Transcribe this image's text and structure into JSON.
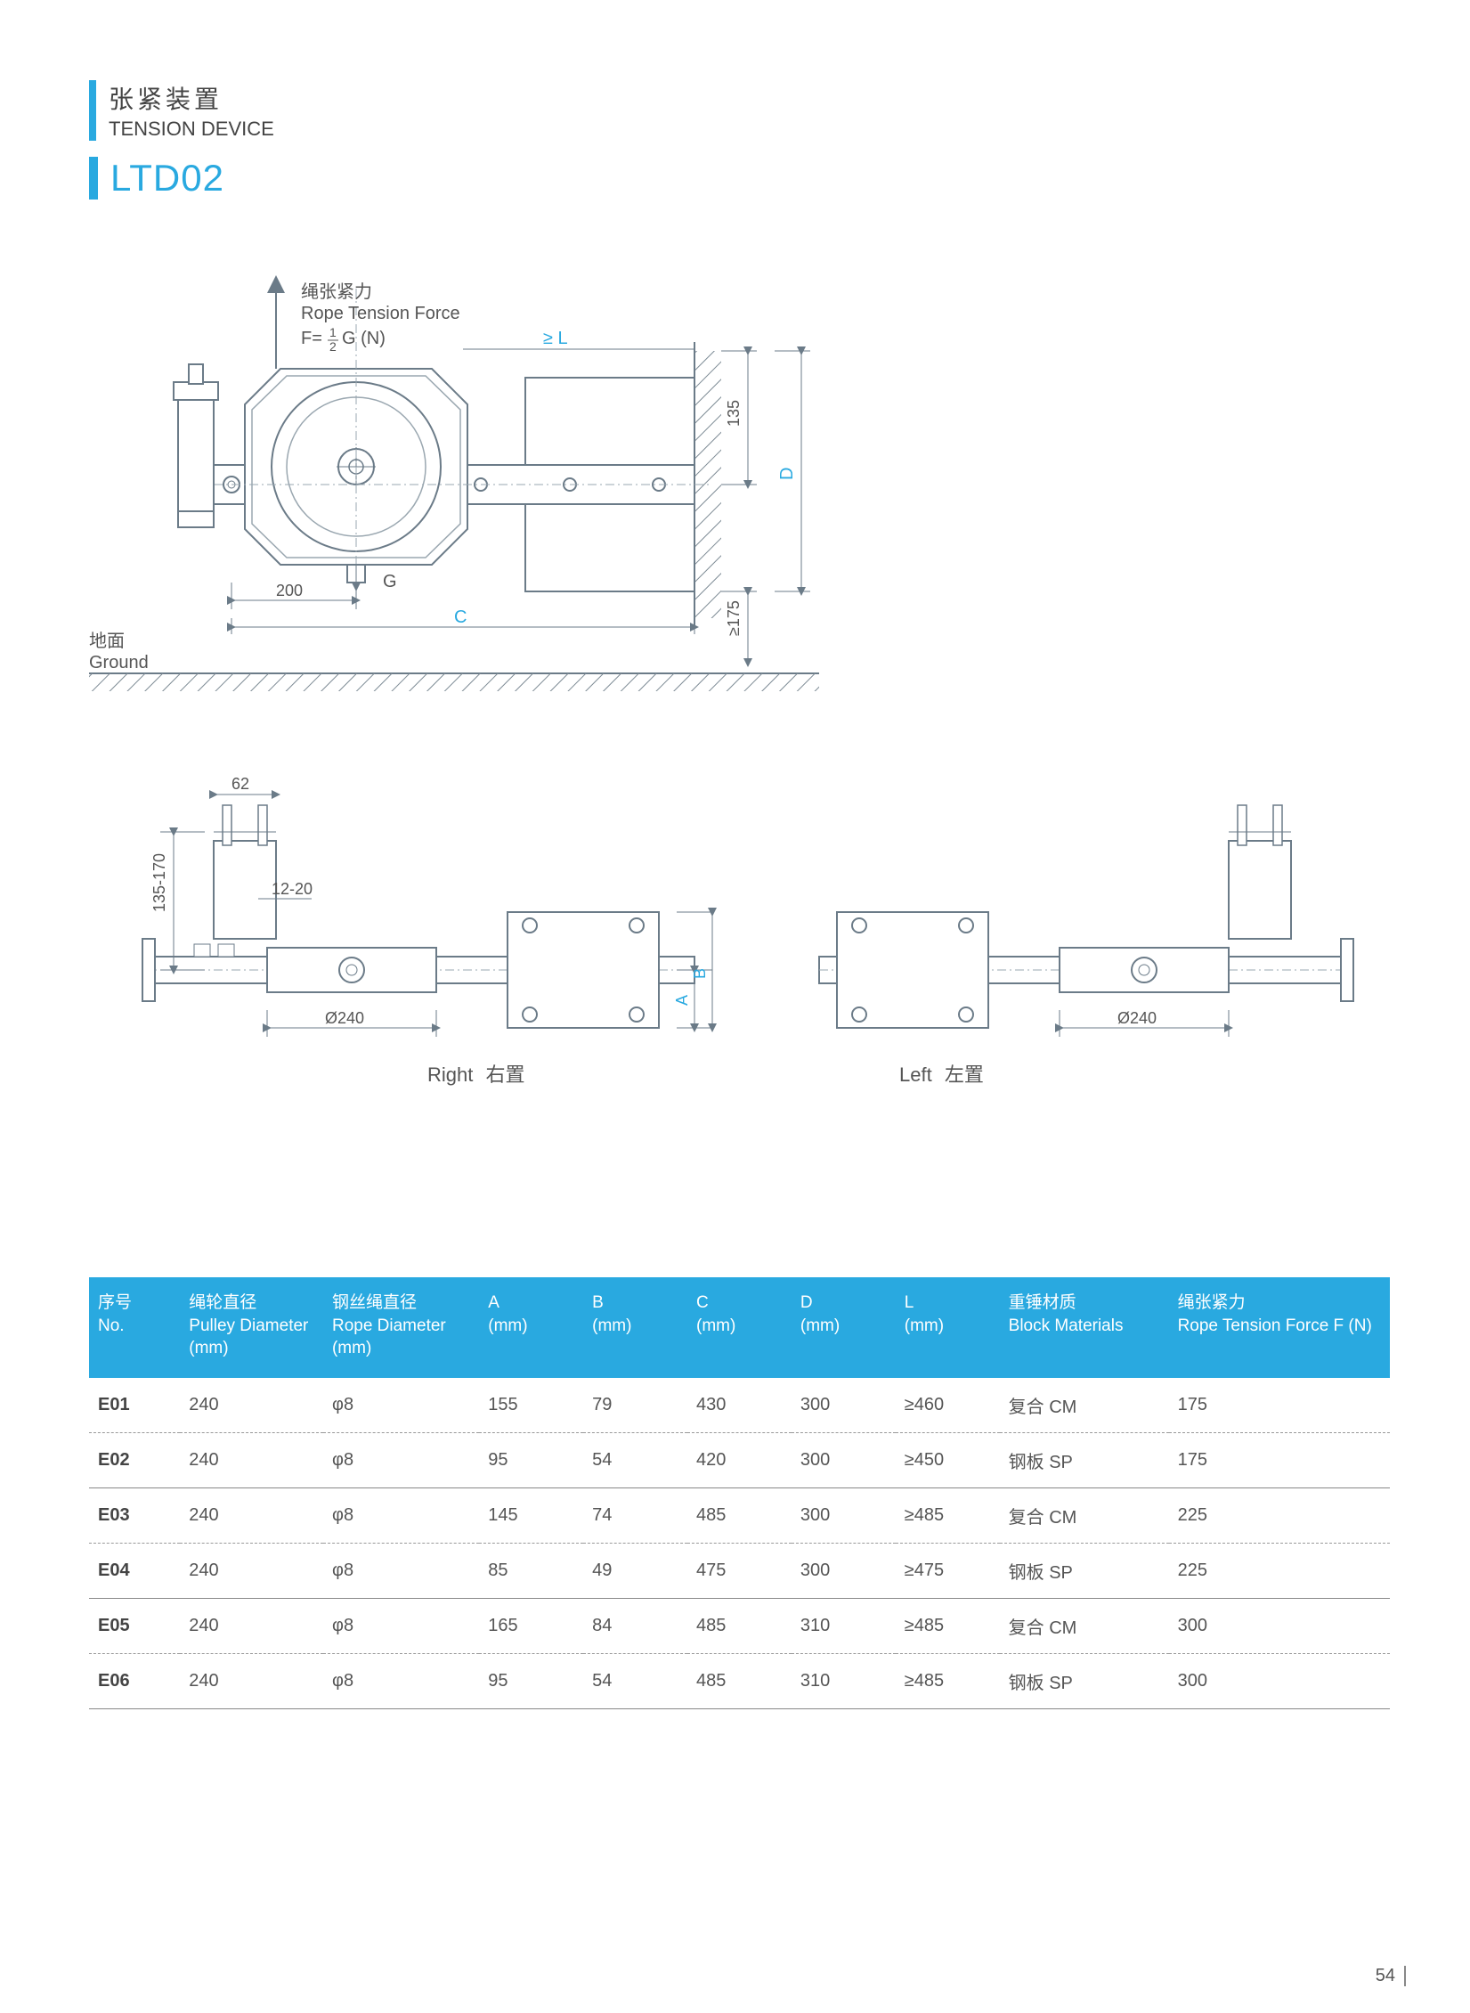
{
  "colors": {
    "accent": "#29a9e0",
    "text": "#555555",
    "stroke": "#6b7b88",
    "strokeLight": "#9aa7b0",
    "hatch": "#7c8a94",
    "white": "#ffffff"
  },
  "title": {
    "cn": "张紧装置",
    "en": "TENSION DEVICE"
  },
  "model": "LTD02",
  "diagram": {
    "ropeTension_cn": "绳张紧力",
    "ropeTension_en": "Rope Tension Force",
    "formula_prefix": "F=",
    "formula_num": "1",
    "formula_den": "2",
    "formula_suffix": " G (N)",
    "geL": "≥ L",
    "dim135": "135",
    "labelD": "D",
    "dim200": "200",
    "labelG": "G",
    "labelC": "C",
    "ge175": "≥175",
    "ground_cn": "地面",
    "ground_en": "Ground",
    "dim62": "62",
    "dim12_20": "12-20",
    "dim135_170": "135-170",
    "dim_phi240": "Ø240",
    "labelA": "A",
    "labelB": "B",
    "right_en": "Right",
    "right_cn": "右置",
    "left_en": "Left",
    "left_cn": "左置"
  },
  "table": {
    "headers": [
      {
        "cn": "序号",
        "en": "No."
      },
      {
        "cn": "绳轮直径",
        "en": "Pulley Diameter  (mm)"
      },
      {
        "cn": "钢丝绳直径",
        "en": "Rope Diameter  (mm)"
      },
      {
        "cn": "A",
        "en": "(mm)"
      },
      {
        "cn": "B",
        "en": "(mm)"
      },
      {
        "cn": "C",
        "en": "(mm)"
      },
      {
        "cn": "D",
        "en": "(mm)"
      },
      {
        "cn": "L",
        "en": "(mm)"
      },
      {
        "cn": "重锤材质",
        "en": "Block Materials"
      },
      {
        "cn": "绳张紧力",
        "en": "Rope Tension Force F (N)"
      }
    ],
    "col_widths_pct": [
      7,
      11,
      12,
      8,
      8,
      8,
      8,
      8,
      13,
      17
    ],
    "rows": [
      {
        "no": "E01",
        "pulley": "240",
        "rope": "φ8",
        "A": "155",
        "B": "79",
        "C": "430",
        "D": "300",
        "L": "≥460",
        "mat": "复合 CM",
        "F": "175",
        "style": "dashed"
      },
      {
        "no": "E02",
        "pulley": "240",
        "rope": "φ8",
        "A": "95",
        "B": "54",
        "C": "420",
        "D": "300",
        "L": "≥450",
        "mat": "钢板 SP",
        "F": "175",
        "style": "solid"
      },
      {
        "no": "E03",
        "pulley": "240",
        "rope": "φ8",
        "A": "145",
        "B": "74",
        "C": "485",
        "D": "300",
        "L": "≥485",
        "mat": "复合 CM",
        "F": "225",
        "style": "dashed"
      },
      {
        "no": "E04",
        "pulley": "240",
        "rope": "φ8",
        "A": "85",
        "B": "49",
        "C": "475",
        "D": "300",
        "L": "≥475",
        "mat": "钢板 SP",
        "F": "225",
        "style": "solid"
      },
      {
        "no": "E05",
        "pulley": "240",
        "rope": "φ8",
        "A": "165",
        "B": "84",
        "C": "485",
        "D": "310",
        "L": "≥485",
        "mat": "复合 CM",
        "F": "300",
        "style": "dashed"
      },
      {
        "no": "E06",
        "pulley": "240",
        "rope": "φ8",
        "A": "95",
        "B": "54",
        "C": "485",
        "D": "310",
        "L": "≥485",
        "mat": "钢板 SP",
        "F": "300",
        "style": "solid"
      }
    ]
  },
  "page_number": "54"
}
